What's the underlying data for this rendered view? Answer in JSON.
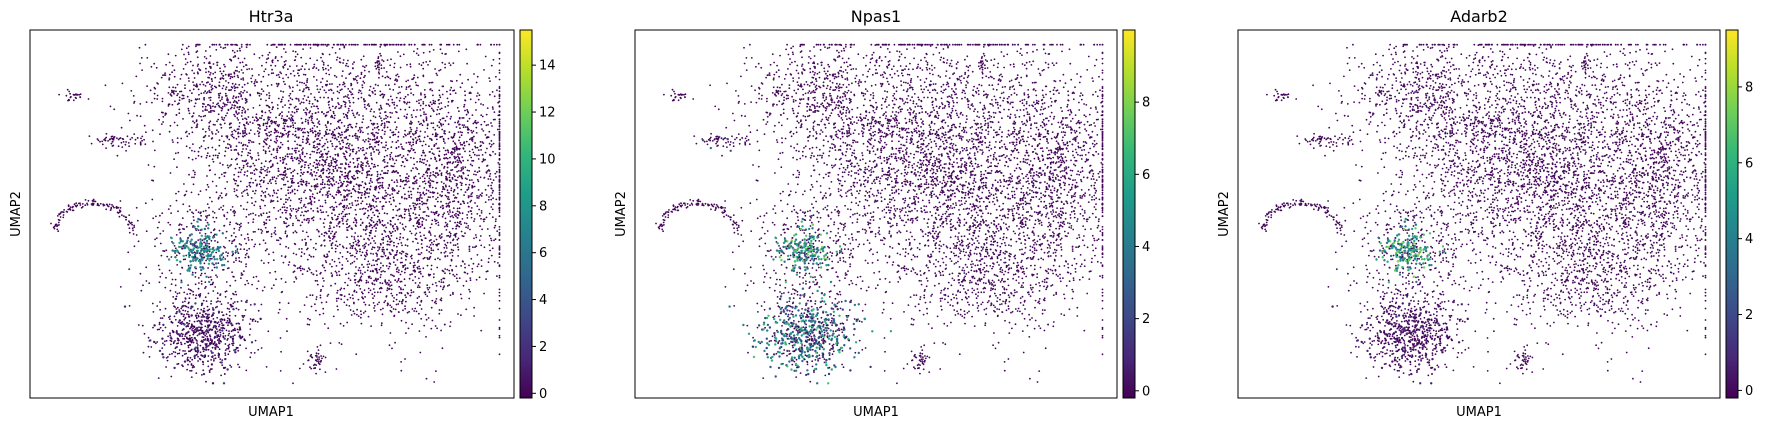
{
  "colormap": "viridis",
  "colors": {
    "viridis_stops": [
      "#440154",
      "#482878",
      "#3e4989",
      "#31688e",
      "#26828e",
      "#1f9e89",
      "#35b779",
      "#6ece58",
      "#b5de2b",
      "#fde725"
    ],
    "frame": "#000000",
    "background": "#ffffff"
  },
  "chart_data": [
    {
      "type": "scatter",
      "title": "Htr3a",
      "xlabel": "UMAP1",
      "ylabel": "UMAP2",
      "xticks": [],
      "yticks": [],
      "grid": false,
      "colorbar": {
        "range": [
          -0.2,
          15.5
        ],
        "ticks": [
          "0",
          "2",
          "4",
          "6",
          "8",
          "10",
          "12",
          "14"
        ],
        "tick_values": [
          0,
          2,
          4,
          6,
          8,
          10,
          12,
          14
        ]
      },
      "expression_regions": [
        {
          "region": "left-mid-cluster",
          "values_range": [
            4,
            10
          ]
        },
        {
          "region": "lower-left-blob",
          "values_range": [
            0,
            3
          ]
        }
      ]
    },
    {
      "type": "scatter",
      "title": "Npas1",
      "xlabel": "UMAP1",
      "ylabel": "UMAP2",
      "xticks": [],
      "yticks": [],
      "grid": false,
      "colorbar": {
        "range": [
          -0.2,
          10.0
        ],
        "ticks": [
          "0",
          "2",
          "4",
          "6",
          "8"
        ],
        "tick_values": [
          0,
          2,
          4,
          6,
          8
        ]
      },
      "expression_regions": [
        {
          "region": "left-mid-cluster",
          "values_range": [
            3,
            8
          ]
        },
        {
          "region": "lower-left-blob",
          "values_range": [
            1,
            7
          ]
        },
        {
          "region": "small-left-group",
          "values_range": [
            2,
            5
          ]
        }
      ]
    },
    {
      "type": "scatter",
      "title": "Adarb2",
      "xlabel": "UMAP1",
      "ylabel": "UMAP2",
      "xticks": [],
      "yticks": [],
      "grid": false,
      "colorbar": {
        "range": [
          -0.2,
          9.5
        ],
        "ticks": [
          "0",
          "2",
          "4",
          "6",
          "8"
        ],
        "tick_values": [
          0,
          2,
          4,
          6,
          8
        ]
      },
      "expression_regions": [
        {
          "region": "left-mid-cluster",
          "values_range": [
            3,
            8
          ]
        },
        {
          "region": "lower-left-blob",
          "values_range": [
            0,
            1
          ]
        }
      ]
    }
  ]
}
